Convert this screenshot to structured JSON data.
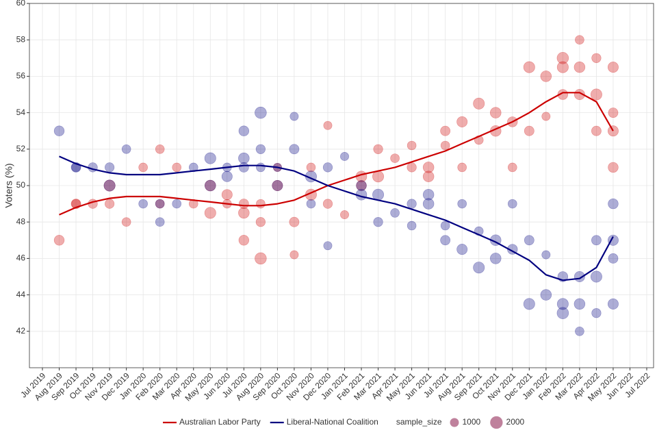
{
  "chart_data": {
    "type": "scatter",
    "y_label": "Voters (%)",
    "ylim": [
      40,
      60
    ],
    "yticks": [
      42,
      44,
      46,
      48,
      50,
      52,
      54,
      56,
      58,
      60
    ],
    "xlim": [
      "2019-07",
      "2022-07"
    ],
    "xticks": [
      {
        "value": "2019-07",
        "label": "Jul 2019"
      },
      {
        "value": "2019-08",
        "label": "Aug 2019"
      },
      {
        "value": "2019-09",
        "label": "Sep 2019"
      },
      {
        "value": "2019-10",
        "label": "Oct 2019"
      },
      {
        "value": "2019-11",
        "label": "Nov 2019"
      },
      {
        "value": "2019-12",
        "label": "Dec 2019"
      },
      {
        "value": "2020-01",
        "label": "Jan 2020"
      },
      {
        "value": "2020-02",
        "label": "Feb 2020"
      },
      {
        "value": "2020-03",
        "label": "Mar 2020"
      },
      {
        "value": "2020-04",
        "label": "Apr 2020"
      },
      {
        "value": "2020-05",
        "label": "May 2020"
      },
      {
        "value": "2020-06",
        "label": "Jun 2020"
      },
      {
        "value": "2020-07",
        "label": "Jul 2020"
      },
      {
        "value": "2020-08",
        "label": "Aug 2020"
      },
      {
        "value": "2020-09",
        "label": "Sep 2020"
      },
      {
        "value": "2020-10",
        "label": "Oct 2020"
      },
      {
        "value": "2020-11",
        "label": "Nov 2020"
      },
      {
        "value": "2020-12",
        "label": "Dec 2020"
      },
      {
        "value": "2021-01",
        "label": "Jan 2021"
      },
      {
        "value": "2021-02",
        "label": "Feb 2021"
      },
      {
        "value": "2021-03",
        "label": "Mar 2021"
      },
      {
        "value": "2021-04",
        "label": "Apr 2021"
      },
      {
        "value": "2021-05",
        "label": "May 2021"
      },
      {
        "value": "2021-06",
        "label": "Jun 2021"
      },
      {
        "value": "2021-07",
        "label": "Jul 2021"
      },
      {
        "value": "2021-08",
        "label": "Aug 2021"
      },
      {
        "value": "2021-09",
        "label": "Sep 2021"
      },
      {
        "value": "2021-10",
        "label": "Oct 2021"
      },
      {
        "value": "2021-11",
        "label": "Nov 2021"
      },
      {
        "value": "2021-12",
        "label": "Dec 2021"
      },
      {
        "value": "2022-01",
        "label": "Jan 2022"
      },
      {
        "value": "2022-02",
        "label": "Feb 2022"
      },
      {
        "value": "2022-03",
        "label": "Mar 2022"
      },
      {
        "value": "2022-04",
        "label": "Apr 2022"
      },
      {
        "value": "2022-05",
        "label": "May 2022"
      },
      {
        "value": "2022-06",
        "label": "Jun 2022"
      },
      {
        "value": "2022-07",
        "label": "Jul 2022"
      }
    ],
    "grid": true,
    "legend_position": "bottom",
    "size_legend": {
      "title": "sample_size",
      "values": [
        1000,
        2000
      ]
    },
    "series": [
      {
        "name": "Australian Labor Party",
        "color": "#cc0000",
        "x": [
          "2019-08",
          "2019-09",
          "2019-09",
          "2019-10",
          "2019-11",
          "2019-11",
          "2019-12",
          "2020-01",
          "2020-02",
          "2020-02",
          "2020-03",
          "2020-04",
          "2020-05",
          "2020-05",
          "2020-06",
          "2020-06",
          "2020-07",
          "2020-07",
          "2020-07",
          "2020-08",
          "2020-08",
          "2020-08",
          "2020-09",
          "2020-09",
          "2020-10",
          "2020-10",
          "2020-11",
          "2020-11",
          "2020-12",
          "2020-12",
          "2021-01",
          "2021-02",
          "2021-02",
          "2021-03",
          "2021-03",
          "2021-04",
          "2021-05",
          "2021-05",
          "2021-06",
          "2021-06",
          "2021-07",
          "2021-07",
          "2021-08",
          "2021-08",
          "2021-09",
          "2021-09",
          "2021-10",
          "2021-10",
          "2021-11",
          "2021-11",
          "2021-12",
          "2021-12",
          "2022-01",
          "2022-01",
          "2022-02",
          "2022-02",
          "2022-02",
          "2022-03",
          "2022-03",
          "2022-03",
          "2022-04",
          "2022-04",
          "2022-04",
          "2022-05",
          "2022-05",
          "2022-05",
          "2022-05"
        ],
        "values": [
          47,
          49,
          49,
          49,
          50,
          49,
          48,
          51,
          52,
          49,
          51,
          49,
          50,
          48.5,
          49,
          49.5,
          49,
          48.5,
          47,
          48,
          46,
          49,
          50,
          51,
          46.2,
          48,
          51,
          49.5,
          53.3,
          49,
          48.4,
          50,
          50.5,
          52,
          50.5,
          51.5,
          52.2,
          51,
          51,
          50.5,
          52.2,
          53,
          53.5,
          51,
          54.5,
          52.5,
          54,
          53,
          53.5,
          51,
          56.5,
          53,
          56,
          53.8,
          56.5,
          57,
          55,
          56.5,
          58,
          55,
          57,
          55,
          53,
          56.5,
          54,
          53,
          51
        ],
        "sizes": [
          1300,
          1000,
          1200,
          1100,
          1600,
          1100,
          1000,
          1000,
          1000,
          1000,
          1000,
          1000,
          1500,
          1600,
          1000,
          1400,
          1200,
          1500,
          1300,
          1100,
          1700,
          1000,
          1400,
          900,
          900,
          1200,
          1000,
          1600,
          900,
          1100,
          900,
          1300,
          1500,
          1100,
          1600,
          1000,
          1000,
          1100,
          1500,
          1500,
          1000,
          1200,
          1400,
          1000,
          1600,
          1000,
          1500,
          1500,
          1300,
          1000,
          1600,
          1200,
          1500,
          900,
          1600,
          1700,
          1300,
          1500,
          1000,
          1400,
          1100,
          1600,
          1200,
          1400,
          1200,
          1400,
          1300
        ],
        "trend_x": [
          "2019-08",
          "2019-09",
          "2019-10",
          "2019-11",
          "2019-12",
          "2020-01",
          "2020-02",
          "2020-03",
          "2020-04",
          "2020-05",
          "2020-06",
          "2020-07",
          "2020-08",
          "2020-09",
          "2020-10",
          "2020-11",
          "2020-12",
          "2021-01",
          "2021-02",
          "2021-03",
          "2021-04",
          "2021-05",
          "2021-06",
          "2021-07",
          "2021-08",
          "2021-09",
          "2021-10",
          "2021-11",
          "2021-12",
          "2022-01",
          "2022-02",
          "2022-03",
          "2022-04",
          "2022-05"
        ],
        "trend_values": [
          48.4,
          48.8,
          49.1,
          49.3,
          49.4,
          49.4,
          49.4,
          49.3,
          49.2,
          49.1,
          49.0,
          48.9,
          48.9,
          49.0,
          49.2,
          49.6,
          50.0,
          50.3,
          50.6,
          50.8,
          51.0,
          51.3,
          51.6,
          51.9,
          52.3,
          52.7,
          53.1,
          53.5,
          54.0,
          54.6,
          55.1,
          55.1,
          54.6,
          53.0
        ]
      },
      {
        "name": "Liberal-National Coalition",
        "color": "#000080",
        "x": [
          "2019-08",
          "2019-09",
          "2019-09",
          "2019-10",
          "2019-11",
          "2019-11",
          "2019-12",
          "2020-01",
          "2020-02",
          "2020-02",
          "2020-03",
          "2020-04",
          "2020-05",
          "2020-05",
          "2020-06",
          "2020-06",
          "2020-07",
          "2020-07",
          "2020-07",
          "2020-08",
          "2020-08",
          "2020-08",
          "2020-09",
          "2020-09",
          "2020-10",
          "2020-10",
          "2020-11",
          "2020-11",
          "2020-12",
          "2020-12",
          "2021-01",
          "2021-02",
          "2021-02",
          "2021-03",
          "2021-03",
          "2021-04",
          "2021-05",
          "2021-05",
          "2021-06",
          "2021-06",
          "2021-07",
          "2021-07",
          "2021-08",
          "2021-08",
          "2021-09",
          "2021-09",
          "2021-10",
          "2021-10",
          "2021-11",
          "2021-11",
          "2021-12",
          "2021-12",
          "2022-01",
          "2022-01",
          "2022-02",
          "2022-02",
          "2022-02",
          "2022-03",
          "2022-03",
          "2022-03",
          "2022-04",
          "2022-04",
          "2022-04",
          "2022-05",
          "2022-05",
          "2022-05",
          "2022-05"
        ],
        "values": [
          53,
          51,
          51,
          51,
          50,
          51,
          52,
          49,
          48,
          49,
          49,
          51,
          51.5,
          50,
          51,
          50.5,
          51,
          51.5,
          53,
          52,
          54,
          51,
          50,
          51,
          53.8,
          52,
          49,
          50.5,
          46.7,
          51,
          51.6,
          49.5,
          50,
          48,
          49.5,
          48.5,
          47.8,
          49,
          49,
          49.5,
          47.8,
          47,
          46.5,
          49,
          45.5,
          47.5,
          46,
          47,
          46.5,
          49,
          43.5,
          47,
          44,
          46.2,
          43.5,
          43,
          45,
          43.5,
          42,
          45,
          43,
          45,
          47,
          43.5,
          46,
          47,
          49
        ],
        "sizes": [
          1300,
          1000,
          1200,
          1100,
          1600,
          1100,
          1000,
          1000,
          1000,
          1000,
          1000,
          1000,
          1600,
          1500,
          1000,
          1400,
          1200,
          1500,
          1300,
          1100,
          1700,
          1000,
          1400,
          900,
          900,
          1200,
          1000,
          1600,
          900,
          1100,
          900,
          1500,
          1300,
          1100,
          1600,
          1000,
          1000,
          1100,
          1500,
          1500,
          1000,
          1200,
          1400,
          1000,
          1600,
          1000,
          1500,
          1500,
          1300,
          1000,
          1600,
          1200,
          1500,
          900,
          1600,
          1700,
          1300,
          1500,
          1000,
          1400,
          1100,
          1600,
          1200,
          1400,
          1200,
          1400,
          1300
        ],
        "trend_x": [
          "2019-08",
          "2019-09",
          "2019-10",
          "2019-11",
          "2019-12",
          "2020-01",
          "2020-02",
          "2020-03",
          "2020-04",
          "2020-05",
          "2020-06",
          "2020-07",
          "2020-08",
          "2020-09",
          "2020-10",
          "2020-11",
          "2020-12",
          "2021-01",
          "2021-02",
          "2021-03",
          "2021-04",
          "2021-05",
          "2021-06",
          "2021-07",
          "2021-08",
          "2021-09",
          "2021-10",
          "2021-11",
          "2021-12",
          "2022-01",
          "2022-02",
          "2022-03",
          "2022-04",
          "2022-05"
        ],
        "trend_values": [
          51.6,
          51.2,
          50.9,
          50.7,
          50.6,
          50.6,
          50.6,
          50.7,
          50.8,
          50.9,
          51.0,
          51.1,
          51.1,
          51.0,
          50.8,
          50.4,
          50.0,
          49.7,
          49.4,
          49.2,
          49.0,
          48.7,
          48.4,
          48.1,
          47.7,
          47.3,
          46.9,
          46.4,
          45.9,
          45.1,
          44.8,
          44.9,
          45.5,
          47.2
        ]
      }
    ]
  }
}
